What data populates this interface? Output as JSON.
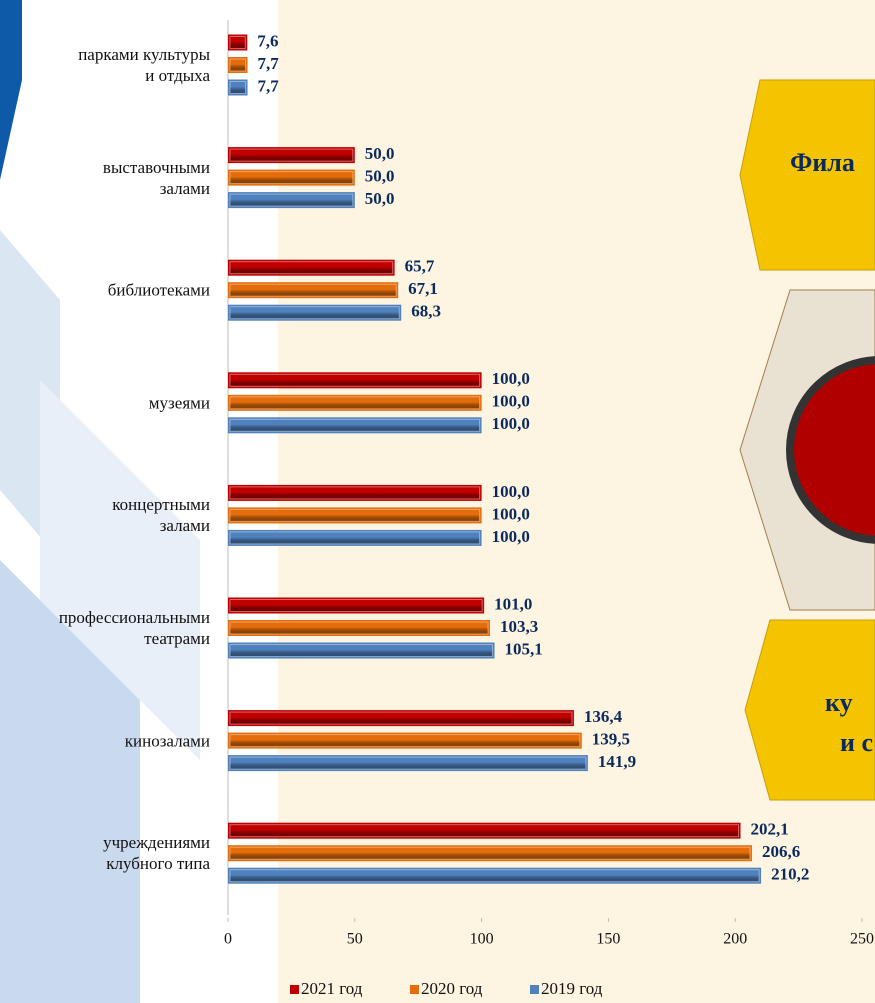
{
  "chart_data": {
    "type": "hbar",
    "categories": [
      "парками культуры\nи отдыха",
      "выставочными\nзалами",
      "библиотеками",
      "музеями",
      "концертными\nзалами",
      "профессиональными\nтеатрами",
      "кинозалами",
      "учреждениями\nклубного типа"
    ],
    "series": [
      {
        "name": "2021 год",
        "color": "#c00000",
        "values": [
          7.6,
          50.0,
          65.7,
          100.0,
          100.0,
          101.0,
          136.4,
          202.1
        ],
        "value_labels": [
          "7,6",
          "50,0",
          "65,7",
          "100,0",
          "100,0",
          "101,0",
          "136,4",
          "202,1"
        ]
      },
      {
        "name": "2020 год",
        "color": "#e46c0a",
        "values": [
          7.7,
          50.0,
          67.1,
          100.0,
          100.0,
          103.3,
          139.5,
          206.6
        ],
        "value_labels": [
          "7,7",
          "50,0",
          "67,1",
          "100,0",
          "100,0",
          "103,3",
          "139,5",
          "206,6"
        ]
      },
      {
        "name": "2019 год",
        "color": "#4f81bd",
        "values": [
          7.7,
          50.0,
          68.3,
          100.0,
          100.0,
          105.1,
          141.9,
          210.2
        ],
        "value_labels": [
          "7,7",
          "50,0",
          "68,3",
          "100,0",
          "100,0",
          "105,1",
          "141,9",
          "210,2"
        ]
      }
    ],
    "xlim": [
      0,
      250
    ],
    "xticks": [
      0,
      50,
      100,
      150,
      200,
      250
    ],
    "legend": "bottom"
  },
  "decor": {
    "top_hexagon_text": "Фила",
    "bottom_hexagon_lines": [
      "ку",
      "и с"
    ]
  }
}
